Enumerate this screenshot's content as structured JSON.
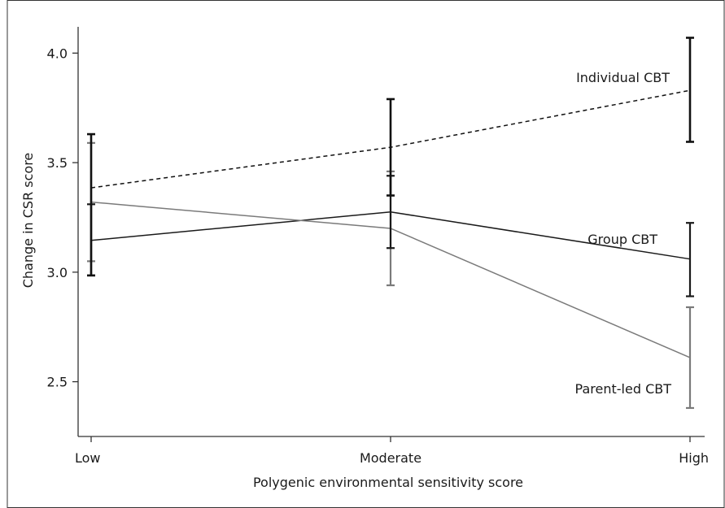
{
  "chart_data": {
    "type": "line",
    "title": "",
    "xlabel": "Polygenic environmental sensitivity score",
    "ylabel": "Change in CSR score",
    "categories": [
      "Low",
      "Moderate",
      "High"
    ],
    "ylim": [
      2.25,
      4.12
    ],
    "yticks": [
      2.5,
      3.0,
      3.5,
      4.0
    ],
    "ytick_labels": [
      "2.5",
      "3.0",
      "3.5",
      "4.0"
    ],
    "grid": false,
    "legend": "direct-labels",
    "series": [
      {
        "name": "Individual CBT",
        "values": [
          3.385,
          3.57,
          3.83
        ],
        "error_low": [
          2.985,
          3.35,
          3.595
        ],
        "error_high": [
          3.63,
          3.79,
          4.07
        ],
        "line_style": "dashed",
        "color": "#111111"
      },
      {
        "name": "Group CBT",
        "values": [
          3.145,
          3.275,
          3.06
        ],
        "error_low": [
          2.985,
          3.11,
          2.89
        ],
        "error_high": [
          3.31,
          3.44,
          3.225
        ],
        "line_style": "solid",
        "color": "#1a1a1a"
      },
      {
        "name": "Parent-led CBT",
        "values": [
          3.32,
          3.2,
          2.61
        ],
        "error_low": [
          3.05,
          2.94,
          2.38
        ],
        "error_high": [
          3.59,
          3.46,
          2.84
        ],
        "line_style": "solid",
        "color": "#7a7a7a"
      }
    ]
  }
}
